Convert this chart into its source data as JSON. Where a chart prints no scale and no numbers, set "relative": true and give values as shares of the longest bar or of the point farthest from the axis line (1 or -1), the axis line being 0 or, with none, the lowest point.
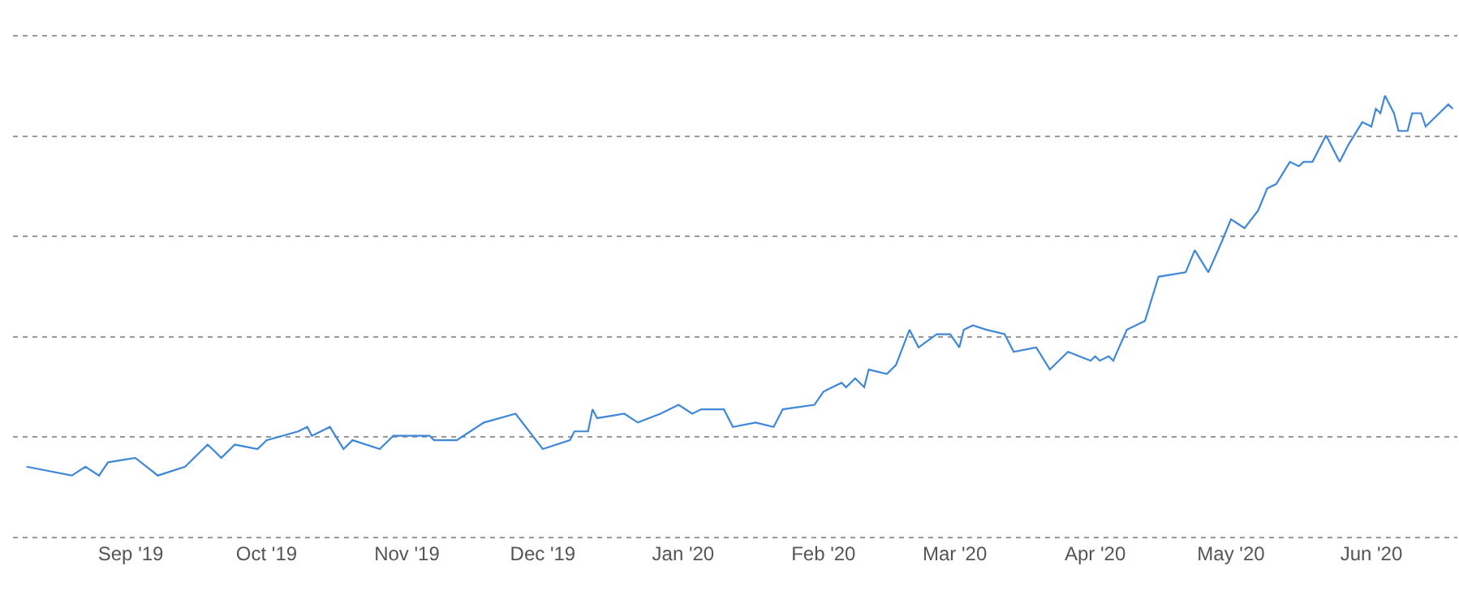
{
  "chart_data": {
    "type": "line",
    "relative": true,
    "grid": "y",
    "tick_labels": "x",
    "xlim": [
      "2019-08-06",
      "2020-06-20"
    ],
    "xticks": [
      {
        "value": "2019-09-01",
        "label": "Sep '19"
      },
      {
        "value": "2019-10-01",
        "label": "Oct '19"
      },
      {
        "value": "2019-11-01",
        "label": "Nov '19"
      },
      {
        "value": "2019-12-01",
        "label": "Dec '19"
      },
      {
        "value": "2020-01-01",
        "label": "Jan '20"
      },
      {
        "value": "2020-02-01",
        "label": "Feb '20"
      },
      {
        "value": "2020-03-01",
        "label": "Mar '20"
      },
      {
        "value": "2020-04-01",
        "label": "Apr '20"
      },
      {
        "value": "2020-05-01",
        "label": "May '20"
      },
      {
        "value": "2020-06-01",
        "label": "Jun '20"
      }
    ],
    "x": [
      "2019-08-09",
      "2019-08-19",
      "2019-08-22",
      "2019-08-25",
      "2019-08-27",
      "2019-09-02",
      "2019-09-07",
      "2019-09-13",
      "2019-09-18",
      "2019-09-21",
      "2019-09-24",
      "2019-09-29",
      "2019-10-01",
      "2019-10-08",
      "2019-10-10",
      "2019-10-11",
      "2019-10-15",
      "2019-10-18",
      "2019-10-20",
      "2019-10-26",
      "2019-10-29",
      "2019-11-06",
      "2019-11-07",
      "2019-11-12",
      "2019-11-15",
      "2019-11-18",
      "2019-11-25",
      "2019-12-01",
      "2019-12-07",
      "2019-12-08",
      "2019-12-11",
      "2019-12-12",
      "2019-12-13",
      "2019-12-19",
      "2019-12-22",
      "2019-12-27",
      "2019-12-31",
      "2020-01-03",
      "2020-01-05",
      "2020-01-10",
      "2020-01-12",
      "2020-01-17",
      "2020-01-21",
      "2020-01-23",
      "2020-01-30",
      "2020-02-01",
      "2020-02-03",
      "2020-02-05",
      "2020-02-06",
      "2020-02-08",
      "2020-02-10",
      "2020-02-11",
      "2020-02-15",
      "2020-02-17",
      "2020-02-20",
      "2020-02-22",
      "2020-02-26",
      "2020-02-29",
      "2020-03-02",
      "2020-03-03",
      "2020-03-05",
      "2020-03-08",
      "2020-03-12",
      "2020-03-14",
      "2020-03-19",
      "2020-03-22",
      "2020-03-26",
      "2020-03-31",
      "2020-04-01",
      "2020-04-02",
      "2020-04-04",
      "2020-04-05",
      "2020-04-08",
      "2020-04-12",
      "2020-04-15",
      "2020-04-21",
      "2020-04-23",
      "2020-04-26",
      "2020-04-29",
      "2020-05-01",
      "2020-05-04",
      "2020-05-07",
      "2020-05-09",
      "2020-05-11",
      "2020-05-14",
      "2020-05-16",
      "2020-05-17",
      "2020-05-19",
      "2020-05-22",
      "2020-05-25",
      "2020-05-27",
      "2020-05-30",
      "2020-06-01",
      "2020-06-02",
      "2020-06-03",
      "2020-06-04",
      "2020-06-06",
      "2020-06-07",
      "2020-06-09",
      "2020-06-10",
      "2020-06-12",
      "2020-06-13",
      "2020-06-17",
      "2020-06-18",
      "2020-06-19"
    ],
    "series": [
      {
        "color": "#3f87d9",
        "values": [
          0.16,
          0.14,
          0.16,
          0.14,
          0.17,
          0.18,
          0.14,
          0.16,
          0.21,
          0.18,
          0.21,
          0.2,
          0.22,
          0.24,
          0.25,
          0.23,
          0.25,
          0.2,
          0.22,
          0.2,
          0.23,
          0.23,
          0.22,
          0.22,
          0.24,
          0.26,
          0.28,
          0.2,
          0.22,
          0.24,
          0.24,
          0.29,
          0.27,
          0.28,
          0.26,
          0.28,
          0.3,
          0.28,
          0.29,
          0.29,
          0.25,
          0.26,
          0.25,
          0.29,
          0.3,
          0.33,
          0.34,
          0.35,
          0.34,
          0.36,
          0.34,
          0.38,
          0.37,
          0.39,
          0.47,
          0.43,
          0.46,
          0.46,
          0.43,
          0.47,
          0.48,
          0.47,
          0.46,
          0.42,
          0.43,
          0.38,
          0.42,
          0.4,
          0.41,
          0.4,
          0.41,
          0.4,
          0.47,
          0.49,
          0.59,
          0.6,
          0.65,
          0.6,
          0.67,
          0.72,
          0.7,
          0.74,
          0.79,
          0.8,
          0.85,
          0.84,
          0.85,
          0.85,
          0.91,
          0.85,
          0.89,
          0.94,
          0.93,
          0.97,
          0.96,
          1.0,
          0.96,
          0.92,
          0.92,
          0.96,
          0.96,
          0.93,
          0.97,
          0.98,
          0.97
        ]
      }
    ]
  }
}
